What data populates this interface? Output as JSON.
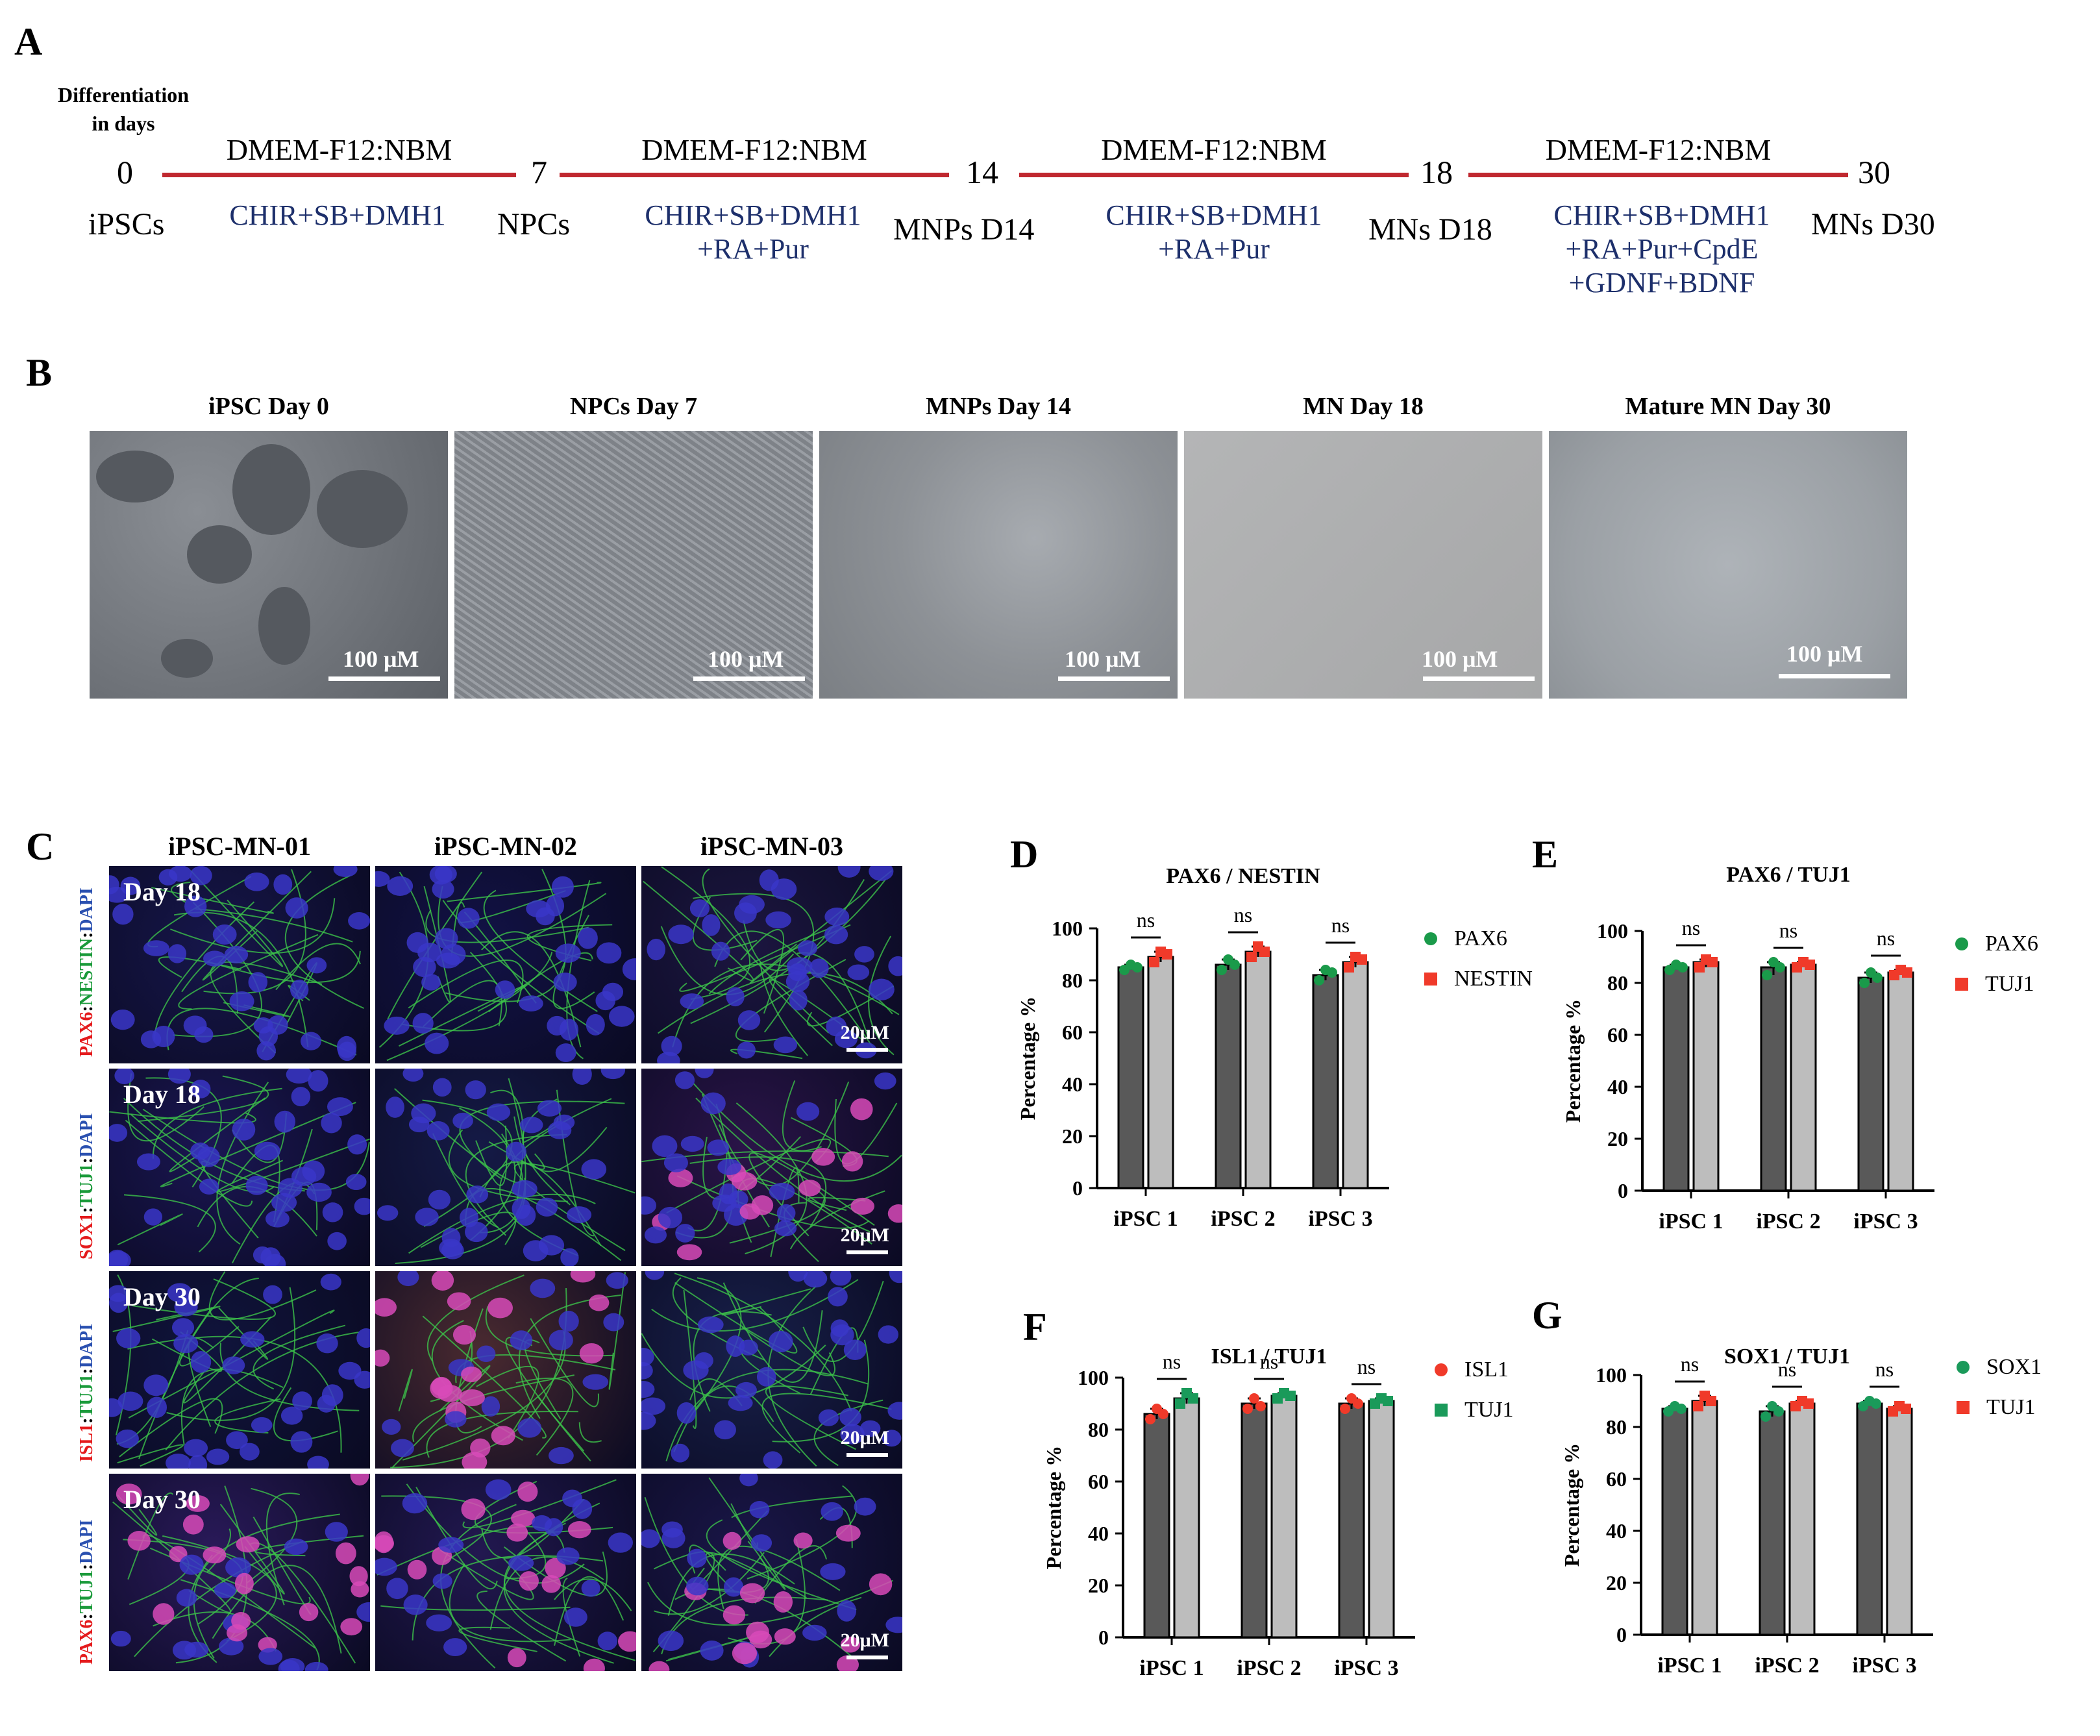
{
  "panel_labels": {
    "A": "A",
    "B": "B",
    "C": "C",
    "D": "D",
    "E": "E",
    "F": "F",
    "G": "G"
  },
  "timeline": {
    "header_line1": "Differentiation",
    "header_line2": "in days",
    "days": [
      "0",
      "7",
      "14",
      "18",
      "30"
    ],
    "stages": [
      "iPSCs",
      "NPCs",
      "MNPs D14",
      "MNs D18",
      "MNs D30"
    ],
    "media": [
      "DMEM-F12:NBM",
      "DMEM-F12:NBM",
      "DMEM-F12:NBM",
      "DMEM-F12:NBM"
    ],
    "drugs": [
      [
        "CHIR+SB+DMH1"
      ],
      [
        "CHIR+SB+DMH1",
        "+RA+Pur"
      ],
      [
        "CHIR+SB+DMH1",
        "+RA+Pur"
      ],
      [
        "CHIR+SB+DMH1",
        "+RA+Pur+CpdE",
        "+GDNF+BDNF"
      ]
    ],
    "line_color": "#c0282f",
    "drug_color": "#1d2f6b"
  },
  "brightfield": {
    "titles": [
      "iPSC Day 0",
      "NPCs Day 7",
      "MNPs Day 14",
      "MN Day 18",
      "Mature MN Day 30"
    ],
    "scale_label": "100 μM"
  },
  "immuno": {
    "columns": [
      "iPSC-MN-01",
      "iPSC-MN-02",
      "iPSC-MN-03"
    ],
    "rows": [
      {
        "day": "Day 18",
        "marker_red": "PAX6",
        "marker_green": "NESTIN",
        "marker_blue": "DAPI"
      },
      {
        "day": "Day 18",
        "marker_red": "SOX1",
        "marker_green": "TUJ1",
        "marker_blue": "DAPI"
      },
      {
        "day": "Day 30",
        "marker_red": "ISL1",
        "marker_green": "TUJ1",
        "marker_blue": "DAPI"
      },
      {
        "day": "Day 30",
        "marker_red": "PAX6",
        "marker_green": "TUJ1",
        "marker_blue": "DAPI"
      }
    ],
    "sep": ":",
    "scale_label": "20μM"
  },
  "chart_data": [
    {
      "panel": "D",
      "type": "bar",
      "title": "PAX6 / NESTIN",
      "categories": [
        "iPSC 1",
        "iPSC 2",
        "iPSC 3"
      ],
      "ylabel": "Percentage %",
      "ylim": [
        0,
        100
      ],
      "yticks": [
        0,
        20,
        40,
        60,
        80,
        100
      ],
      "series": [
        {
          "name": "PAX6",
          "values": [
            85,
            86,
            82
          ],
          "points": [
            [
              84,
              86,
              85
            ],
            [
              84,
              88,
              86
            ],
            [
              80,
              84,
              83
            ]
          ],
          "bar_color": "#595959",
          "marker": "circle",
          "marker_color": "#1a9a4a"
        },
        {
          "name": "NESTIN",
          "values": [
            89,
            91,
            87
          ],
          "points": [
            [
              87,
              91,
              90
            ],
            [
              89,
              93,
              91
            ],
            [
              85,
              89,
              88
            ]
          ],
          "bar_color": "#bdbdbd",
          "marker": "square",
          "marker_color": "#f03a2a"
        }
      ],
      "significance": [
        "ns",
        "ns",
        "ns"
      ]
    },
    {
      "panel": "E",
      "type": "bar",
      "title": "PAX6 / TUJ1",
      "categories": [
        "iPSC 1",
        "iPSC 2",
        "iPSC 3"
      ],
      "ylabel": "Percentage %",
      "ylim": [
        0,
        100
      ],
      "yticks": [
        0,
        20,
        40,
        60,
        80,
        100
      ],
      "series": [
        {
          "name": "PAX6",
          "values": [
            86,
            86,
            82
          ],
          "points": [
            [
              85,
              87,
              86
            ],
            [
              83,
              88,
              86
            ],
            [
              80,
              84,
              82
            ]
          ],
          "bar_color": "#595959",
          "marker": "circle",
          "marker_color": "#1a9a4a"
        },
        {
          "name": "TUJ1",
          "values": [
            88,
            87,
            84
          ],
          "points": [
            [
              86,
              89,
              88
            ],
            [
              86,
              88,
              87
            ],
            [
              83,
              85,
              84
            ]
          ],
          "bar_color": "#bdbdbd",
          "marker": "square",
          "marker_color": "#f03a2a"
        }
      ],
      "significance": [
        "ns",
        "ns",
        "ns"
      ]
    },
    {
      "panel": "F",
      "type": "bar",
      "title": "ISL1 / TUJ1",
      "categories": [
        "iPSC 1",
        "iPSC 2",
        "iPSC 3"
      ],
      "ylabel": "Percentage %",
      "ylim": [
        0,
        100
      ],
      "yticks": [
        0,
        20,
        40,
        60,
        80,
        100
      ],
      "series": [
        {
          "name": "ISL1",
          "values": [
            86,
            90,
            90
          ],
          "points": [
            [
              84,
              88,
              86
            ],
            [
              88,
              92,
              89
            ],
            [
              88,
              92,
              90
            ]
          ],
          "bar_color": "#595959",
          "marker": "circle",
          "marker_color": "#f03a2a"
        },
        {
          "name": "TUJ1",
          "values": [
            92,
            93,
            91
          ],
          "points": [
            [
              90,
              94,
              92
            ],
            [
              92,
              94,
              93
            ],
            [
              90,
              92,
              91
            ]
          ],
          "bar_color": "#bdbdbd",
          "marker": "square",
          "marker_color": "#1a9a5a"
        }
      ],
      "significance": [
        "ns",
        "ns",
        "ns"
      ]
    },
    {
      "panel": "G",
      "type": "bar",
      "title": "SOX1 / TUJ1",
      "categories": [
        "iPSC 1",
        "iPSC 2",
        "iPSC 3"
      ],
      "ylabel": "Percentage %",
      "ylim": [
        0,
        100
      ],
      "yticks": [
        0,
        20,
        40,
        60,
        80,
        100
      ],
      "series": [
        {
          "name": "SOX1",
          "values": [
            87,
            86,
            89
          ],
          "points": [
            [
              86,
              88,
              87
            ],
            [
              84,
              88,
              86
            ],
            [
              88,
              90,
              89
            ]
          ],
          "bar_color": "#595959",
          "marker": "circle",
          "marker_color": "#1a9a5a"
        },
        {
          "name": "TUJ1",
          "values": [
            90,
            89,
            87
          ],
          "points": [
            [
              88,
              92,
              90
            ],
            [
              88,
              90,
              89
            ],
            [
              86,
              88,
              87
            ]
          ],
          "bar_color": "#bdbdbd",
          "marker": "square",
          "marker_color": "#f03a2a"
        }
      ],
      "significance": [
        "ns",
        "ns",
        "ns"
      ]
    }
  ]
}
